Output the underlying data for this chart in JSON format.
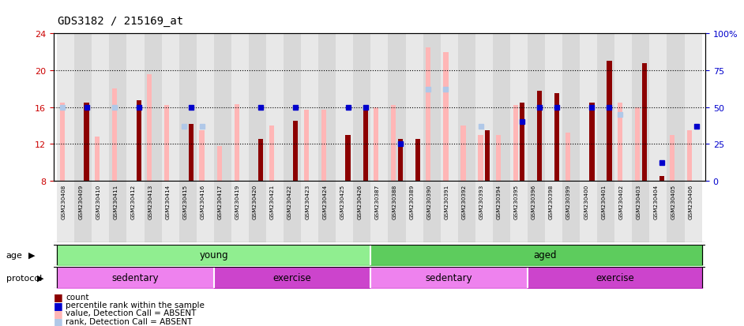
{
  "title": "GDS3182 / 215169_at",
  "samples": [
    "GSM230408",
    "GSM230409",
    "GSM230410",
    "GSM230411",
    "GSM230412",
    "GSM230413",
    "GSM230414",
    "GSM230415",
    "GSM230416",
    "GSM230417",
    "GSM230419",
    "GSM230420",
    "GSM230421",
    "GSM230422",
    "GSM230423",
    "GSM230424",
    "GSM230425",
    "GSM230426",
    "GSM230387",
    "GSM230388",
    "GSM230389",
    "GSM230390",
    "GSM230391",
    "GSM230392",
    "GSM230393",
    "GSM230394",
    "GSM230395",
    "GSM230396",
    "GSM230398",
    "GSM230399",
    "GSM230400",
    "GSM230401",
    "GSM230402",
    "GSM230403",
    "GSM230404",
    "GSM230405",
    "GSM230406"
  ],
  "value_absent": [
    16.5,
    null,
    12.8,
    18.0,
    null,
    19.6,
    16.2,
    null,
    13.5,
    11.8,
    16.3,
    null,
    14.0,
    null,
    15.7,
    15.7,
    null,
    null,
    16.0,
    16.2,
    null,
    22.5,
    22.0,
    14.0,
    13.0,
    13.0,
    16.2,
    null,
    null,
    13.2,
    null,
    null,
    16.5,
    16.0,
    null,
    13.0,
    13.5
  ],
  "count": [
    null,
    16.5,
    null,
    null,
    16.7,
    null,
    null,
    14.2,
    null,
    null,
    null,
    12.5,
    null,
    14.5,
    null,
    null,
    13.0,
    16.0,
    null,
    12.5,
    12.5,
    null,
    null,
    null,
    13.5,
    null,
    16.5,
    17.8,
    17.5,
    null,
    16.5,
    21.0,
    null,
    20.8,
    8.5,
    null,
    null
  ],
  "percentile_rank": [
    null,
    50.0,
    null,
    null,
    50.0,
    null,
    null,
    50.0,
    null,
    null,
    null,
    50.0,
    null,
    50.0,
    null,
    null,
    50.0,
    50.0,
    null,
    25.0,
    null,
    null,
    null,
    null,
    null,
    null,
    40.0,
    50.0,
    50.0,
    null,
    50.0,
    50.0,
    null,
    null,
    12.0,
    null,
    37.0
  ],
  "rank_absent": [
    50.0,
    null,
    null,
    50.0,
    null,
    null,
    null,
    37.0,
    37.0,
    null,
    null,
    null,
    null,
    null,
    null,
    null,
    null,
    null,
    null,
    null,
    null,
    62.0,
    62.0,
    null,
    37.0,
    null,
    null,
    null,
    null,
    null,
    null,
    null,
    45.0,
    null,
    null,
    null,
    null
  ],
  "ylim_left": [
    8,
    24
  ],
  "ylim_right": [
    0,
    100
  ],
  "yticks_left": [
    8,
    12,
    16,
    20,
    24
  ],
  "yticks_right": [
    0,
    25,
    50,
    75,
    100
  ],
  "yticklabels_right": [
    "0",
    "25",
    "50",
    "75",
    "100%"
  ],
  "color_value_absent": "#ffb6b6",
  "color_count": "#8b0000",
  "color_percentile": "#0000cc",
  "color_rank_absent": "#b0c8e8",
  "color_ytick_left": "#cc0000",
  "color_ytick_right": "#0000cc",
  "color_young": "#90ee90",
  "color_aged": "#5dcc5d",
  "color_sedentary": "#ee82ee",
  "color_exercise": "#cc44cc",
  "bar_width": 0.35,
  "marker_size": 4
}
